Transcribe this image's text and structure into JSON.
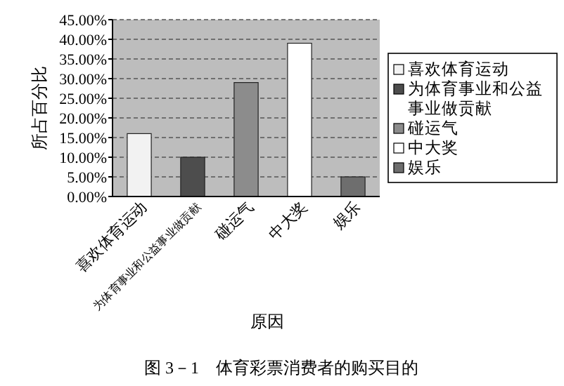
{
  "chart_data": {
    "type": "bar",
    "xlabel": "原因",
    "ylabel": "所占百分比",
    "categories": [
      "喜欢体育运动",
      "为体育事业和公益事业做贡献",
      "碰运气",
      "中大奖",
      "娱乐"
    ],
    "series": [
      {
        "name": "喜欢体育运动",
        "color": "#f2f2f2",
        "values": [
          16,
          null,
          null,
          null,
          null
        ]
      },
      {
        "name": "为体育事业和公益事业做贡献",
        "color": "#4d4d4d",
        "values": [
          null,
          10,
          null,
          null,
          null
        ]
      },
      {
        "name": "碰运气",
        "color": "#8c8c8c",
        "values": [
          null,
          null,
          29,
          null,
          null
        ]
      },
      {
        "name": "中大奖",
        "color": "#ffffff",
        "values": [
          null,
          null,
          null,
          39,
          null
        ]
      },
      {
        "name": "娱乐",
        "color": "#6e6e6e",
        "values": [
          null,
          null,
          null,
          null,
          5
        ]
      }
    ],
    "ylim": [
      0,
      45
    ],
    "yticks": [
      {
        "value": 0,
        "label": "0.00%"
      },
      {
        "value": 5,
        "label": "5.00%"
      },
      {
        "value": 10,
        "label": "10.00%"
      },
      {
        "value": 15,
        "label": "15.00%"
      },
      {
        "value": 20,
        "label": "20.00%"
      },
      {
        "value": 25,
        "label": "25.00%"
      },
      {
        "value": 30,
        "label": "30.00%"
      },
      {
        "value": 35,
        "label": "35.00%"
      },
      {
        "value": 40,
        "label": "40.00%"
      },
      {
        "value": 45,
        "label": "45.00%"
      }
    ],
    "grid": "y",
    "legend": "right",
    "annotations": [
      "图 3－1　体育彩票消费者的购买目的"
    ]
  }
}
